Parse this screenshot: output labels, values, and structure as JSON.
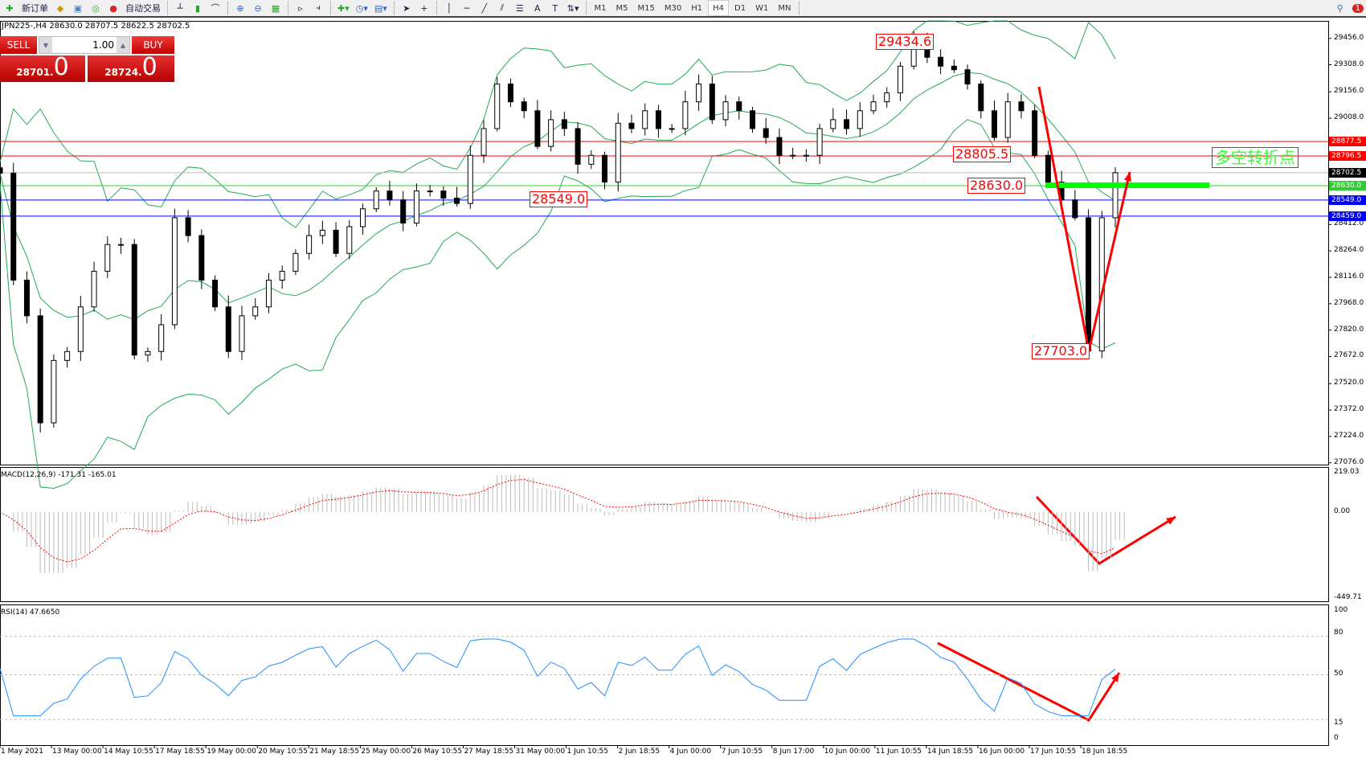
{
  "toolbar": {
    "new_order": "新订单",
    "auto_trading": "自动交易",
    "icons": [
      "new-order-icon",
      "history-center-icon",
      "options-icon",
      "signals-icon",
      "auto-trading-icon",
      "bar-chart-icon",
      "candlestick-icon",
      "line-chart-icon",
      "zoom-in-icon",
      "zoom-out-icon",
      "tile-windows-icon",
      "auto-scroll-icon",
      "chart-shift-icon",
      "indicators-icon",
      "periods-icon",
      "templates-icon",
      "cursor-icon",
      "crosshair-icon",
      "vertical-line-icon",
      "horizontal-line-icon",
      "trendline-icon",
      "equidistant-channel-icon",
      "fibonacci-icon",
      "text-icon",
      "text-label-icon",
      "arrows-icon",
      "search-icon",
      "notification-icon"
    ],
    "timeframes": [
      "M1",
      "M5",
      "M15",
      "M30",
      "H1",
      "H4",
      "D1",
      "W1",
      "MN"
    ],
    "active_timeframe": "H4",
    "notification_count": "1"
  },
  "chart_header": "JPN225-,H4  28630.0 28707.5 28622.5 28702.5",
  "trade_panel": {
    "sell_label": "SELL",
    "buy_label": "BUY",
    "lot": "1.00",
    "sell_price_main": "28701",
    "sell_price_big": "0",
    "buy_price_main": "28724",
    "buy_price_big": "0"
  },
  "chart_data": {
    "type": "candlestick",
    "symbol": "JPN225-",
    "timeframe": "H4",
    "closes": [
      28700,
      28100,
      27900,
      27300,
      27650,
      27700,
      27950,
      28150,
      28300,
      28300,
      27680,
      27700,
      27850,
      28450,
      28350,
      28100,
      27950,
      27700,
      27900,
      27950,
      28100,
      28150,
      28250,
      28350,
      28380,
      28250,
      28400,
      28500,
      28600,
      28550,
      28420,
      28600,
      28600,
      28560,
      28530,
      28800,
      28950,
      29200,
      29100,
      29050,
      28850,
      29000,
      28950,
      28750,
      28800,
      28650,
      28980,
      28950,
      29050,
      28950,
      28950,
      29100,
      29200,
      29000,
      29100,
      29050,
      28950,
      28900,
      28800,
      28800,
      28800,
      28950,
      29000,
      28950,
      29050,
      29100,
      29150,
      29300,
      29434.6,
      29350,
      29300,
      29280,
      29200,
      29050,
      28900,
      29100,
      29050,
      28800,
      28650,
      28550,
      28450,
      27703,
      28450,
      28702.5
    ],
    "price_axis": {
      "ticks": [
        "29456.0",
        "29308.0",
        "29156.0",
        "29008.0",
        "28412.0",
        "28264.0",
        "28116.0",
        "27968.0",
        "27820.0",
        "27672.0",
        "27520.0",
        "27372.0",
        "27224.0",
        "27076.0"
      ],
      "range": [
        27076,
        29456
      ]
    },
    "levels": [
      {
        "price": "28877.5",
        "color": "#ff0000"
      },
      {
        "price": "28796.5",
        "color": "#ff0000"
      },
      {
        "price": "28702.5",
        "color": "#000000"
      },
      {
        "price": "28630.0",
        "color": "#33cc33"
      },
      {
        "price": "28549.0",
        "color": "#0000ff"
      },
      {
        "price": "28459.0",
        "color": "#0000ff"
      }
    ],
    "price_labels": [
      "29434.6",
      "28805.5",
      "28549.0",
      "28630.0",
      "27703.0"
    ],
    "annotation": "多空转折点",
    "bands_color": "#22aa55",
    "macd": {
      "label": "MACD(12,26,9) -171.31 -165.01",
      "ticks": [
        "219.03",
        "0.00",
        "-449.71"
      ]
    },
    "rsi": {
      "label": "RSI(14) 47.6650",
      "ticks": [
        "100",
        "80",
        "50",
        "15",
        "0"
      ],
      "levels": [
        80,
        50,
        15
      ]
    },
    "dates": [
      "1 May 2021",
      "13 May 00:00",
      "14 May 10:55",
      "17 May 18:55",
      "19 May 00:00",
      "20 May 10:55",
      "21 May 18:55",
      "25 May 00:00",
      "26 May 10:55",
      "27 May 18:55",
      "31 May 00:00",
      "1 Jun 10:55",
      "2 Jun 18:55",
      "4 Jun 00:00",
      "7 Jun 10:55",
      "8 Jun 17:00",
      "10 Jun 00:00",
      "11 Jun 10:55",
      "14 Jun 18:55",
      "16 Jun 00:00",
      "17 Jun 10:55",
      "18 Jun 18:55"
    ]
  }
}
